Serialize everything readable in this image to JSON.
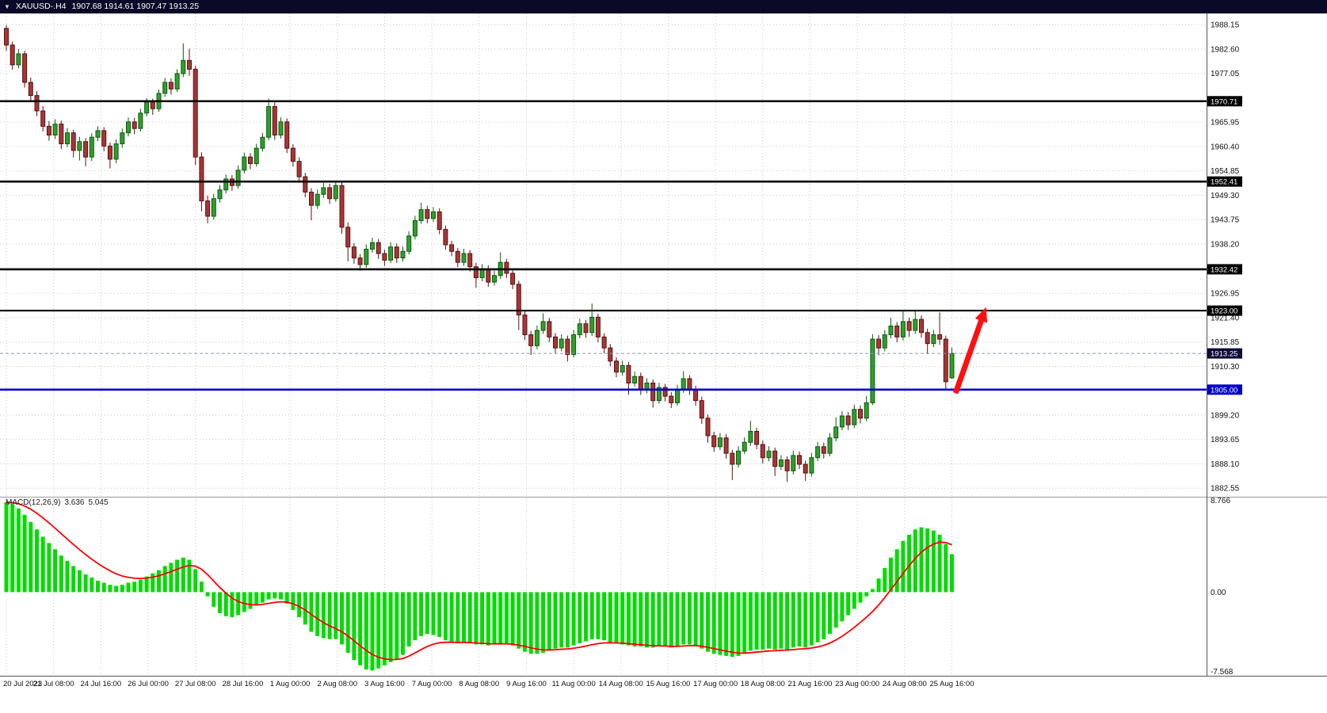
{
  "topbar": {
    "dropdown_icon": "▼",
    "symbol": "XAUUSD-.H4",
    "ohlc": "1907.68 1914.61 1907.47 1913.25"
  },
  "indicator": {
    "name": "MACD(12,26,9)",
    "value_main": "3.636",
    "value_signal": "5.045"
  },
  "colors": {
    "topbar_bg": "#0a0a28",
    "topbar_text": "#ffffff",
    "background": "#ffffff",
    "grid": "#c9c9c9"
  },
  "chart_data": [
    {
      "type": "candlestick",
      "symbol": "XAUUSD-",
      "timeframe": "H4",
      "bull_color": "#2f9e2f",
      "bull_border": "#0c5c0c",
      "bear_color": "#a83636",
      "bear_border": "#571111",
      "ylim": [
        1880.6,
        1990.7
      ],
      "y_ticks": [
        "1988.15",
        "1982.60",
        "1977.05",
        "1965.95",
        "1960.40",
        "1954.85",
        "1949.30",
        "1943.75",
        "1938.20",
        "1926.95",
        "1921.40",
        "1915.85",
        "1910.30",
        "1899.20",
        "1893.65",
        "1888.10",
        "1882.55"
      ],
      "boxed_labels": [
        {
          "value": "1970.71",
          "bg": "#000000"
        },
        {
          "value": "1952.41",
          "bg": "#000000"
        },
        {
          "value": "1932.42",
          "bg": "#000000"
        },
        {
          "value": "1923.00",
          "bg": "#000000"
        },
        {
          "value": "1913.25",
          "bg": "#0b0b38"
        },
        {
          "value": "1905.00",
          "bg": "#0000c8"
        }
      ],
      "price_lines": [
        {
          "value": 1970.71,
          "color": "#000000",
          "width": 2.6,
          "style": "solid"
        },
        {
          "value": 1952.41,
          "color": "#000000",
          "width": 2.6,
          "style": "solid"
        },
        {
          "value": 1932.42,
          "color": "#000000",
          "width": 2.6,
          "style": "solid"
        },
        {
          "value": 1923.0,
          "color": "#000000",
          "width": 2.2,
          "style": "solid"
        },
        {
          "value": 1913.25,
          "color": "#8b9ab5",
          "width": 1,
          "style": "dash"
        },
        {
          "value": 1905.0,
          "color": "#0000c8",
          "width": 2.6,
          "style": "solid"
        }
      ],
      "x_labels": [
        "20 Jul 2023",
        "21 Jul 08:00",
        "24 Jul 16:00",
        "26 Jul 00:00",
        "27 Jul 08:00",
        "28 Jul 16:00",
        "1 Aug 00:00",
        "2 Aug 08:00",
        "3 Aug 16:00",
        "7 Aug 00:00",
        "8 Aug 08:00",
        "9 Aug 16:00",
        "11 Aug 00:00",
        "14 Aug 08:00",
        "15 Aug 16:00",
        "17 Aug 00:00",
        "18 Aug 08:00",
        "21 Aug 16:00",
        "23 Aug 00:00",
        "24 Aug 08:00",
        "25 Aug 16:00"
      ],
      "annotation_arrow": {
        "from_bar": 155.6,
        "from_price": 1904.2,
        "to_bar": 160.6,
        "to_price": 1923.8,
        "color": "#ff0f0f"
      },
      "ohlc": [
        [
          1987.3,
          1988.1,
          1982.2,
          1983.5
        ],
        [
          1983.5,
          1984.3,
          1977.9,
          1979.0
        ],
        [
          1979.0,
          1982.6,
          1978.2,
          1981.5
        ],
        [
          1981.5,
          1982.2,
          1973.8,
          1975.0
        ],
        [
          1975.0,
          1976.1,
          1970.9,
          1972.0
        ],
        [
          1972.0,
          1973.0,
          1967.3,
          1968.5
        ],
        [
          1968.5,
          1969.6,
          1963.8,
          1965.0
        ],
        [
          1965.0,
          1966.2,
          1961.7,
          1963.0
        ],
        [
          1963.0,
          1966.6,
          1962.1,
          1965.5
        ],
        [
          1965.5,
          1966.3,
          1959.8,
          1961.0
        ],
        [
          1961.0,
          1964.6,
          1960.2,
          1963.5
        ],
        [
          1963.5,
          1964.2,
          1957.9,
          1959.5
        ],
        [
          1959.5,
          1962.6,
          1957.2,
          1961.5
        ],
        [
          1961.5,
          1962.3,
          1955.9,
          1958.0
        ],
        [
          1958.0,
          1963.4,
          1957.1,
          1962.5
        ],
        [
          1962.5,
          1965.0,
          1961.6,
          1964.0
        ],
        [
          1964.0,
          1964.8,
          1959.3,
          1960.5
        ],
        [
          1960.5,
          1961.3,
          1955.4,
          1957.5
        ],
        [
          1957.5,
          1962.0,
          1956.6,
          1961.0
        ],
        [
          1961.0,
          1964.5,
          1960.1,
          1963.5
        ],
        [
          1963.5,
          1967.0,
          1962.7,
          1966.0
        ],
        [
          1966.0,
          1966.9,
          1963.2,
          1964.5
        ],
        [
          1964.5,
          1969.0,
          1963.8,
          1968.0
        ],
        [
          1968.0,
          1971.4,
          1967.2,
          1970.5
        ],
        [
          1970.5,
          1971.3,
          1967.6,
          1969.0
        ],
        [
          1969.0,
          1973.4,
          1968.3,
          1972.5
        ],
        [
          1972.5,
          1976.0,
          1971.7,
          1975.0
        ],
        [
          1975.0,
          1975.9,
          1972.2,
          1973.5
        ],
        [
          1973.5,
          1978.0,
          1972.8,
          1977.0
        ],
        [
          1977.0,
          1983.9,
          1976.2,
          1980.0
        ],
        [
          1980.0,
          1982.7,
          1976.5,
          1978.0
        ],
        [
          1978.0,
          1978.8,
          1956.2,
          1958.0
        ],
        [
          1958.0,
          1959.1,
          1945.6,
          1948.0
        ],
        [
          1948.0,
          1949.2,
          1942.9,
          1944.5
        ],
        [
          1944.5,
          1949.6,
          1943.7,
          1948.5
        ],
        [
          1948.5,
          1951.6,
          1947.6,
          1950.5
        ],
        [
          1950.5,
          1954.0,
          1949.7,
          1953.0
        ],
        [
          1953.0,
          1953.9,
          1950.3,
          1951.5
        ],
        [
          1951.5,
          1956.1,
          1950.8,
          1955.0
        ],
        [
          1955.0,
          1959.0,
          1954.2,
          1958.0
        ],
        [
          1958.0,
          1958.9,
          1955.2,
          1956.5
        ],
        [
          1956.5,
          1961.0,
          1955.8,
          1960.0
        ],
        [
          1960.0,
          1963.5,
          1959.2,
          1962.5
        ],
        [
          1962.5,
          1971.3,
          1961.8,
          1969.5
        ],
        [
          1969.5,
          1970.6,
          1961.9,
          1963.0
        ],
        [
          1963.0,
          1967.0,
          1962.2,
          1966.0
        ],
        [
          1966.0,
          1966.8,
          1958.9,
          1960.0
        ],
        [
          1960.0,
          1960.9,
          1955.8,
          1957.0
        ],
        [
          1957.0,
          1957.9,
          1952.3,
          1953.5
        ],
        [
          1953.5,
          1954.4,
          1948.8,
          1950.0
        ],
        [
          1950.0,
          1950.9,
          1943.6,
          1947.0
        ],
        [
          1947.0,
          1950.6,
          1946.2,
          1949.5
        ],
        [
          1949.5,
          1952.1,
          1948.7,
          1951.0
        ],
        [
          1951.0,
          1951.9,
          1947.3,
          1948.5
        ],
        [
          1948.5,
          1952.6,
          1947.8,
          1951.5
        ],
        [
          1951.5,
          1952.3,
          1940.5,
          1942.0
        ],
        [
          1942.0,
          1943.1,
          1934.2,
          1937.5
        ],
        [
          1937.5,
          1938.4,
          1933.7,
          1935.0
        ],
        [
          1935.0,
          1935.9,
          1932.1,
          1933.5
        ],
        [
          1933.5,
          1938.1,
          1932.8,
          1937.0
        ],
        [
          1937.0,
          1939.6,
          1936.2,
          1938.5
        ],
        [
          1938.5,
          1939.3,
          1934.8,
          1936.0
        ],
        [
          1936.0,
          1936.9,
          1933.2,
          1934.5
        ],
        [
          1934.5,
          1938.6,
          1933.8,
          1937.5
        ],
        [
          1937.5,
          1938.3,
          1933.9,
          1935.0
        ],
        [
          1935.0,
          1937.6,
          1934.2,
          1936.5
        ],
        [
          1936.5,
          1941.1,
          1935.8,
          1940.0
        ],
        [
          1940.0,
          1944.6,
          1939.2,
          1943.5
        ],
        [
          1943.5,
          1947.6,
          1942.8,
          1946.0
        ],
        [
          1946.0,
          1946.9,
          1942.9,
          1944.0
        ],
        [
          1944.0,
          1946.6,
          1943.2,
          1945.5
        ],
        [
          1945.5,
          1946.3,
          1940.4,
          1941.5
        ],
        [
          1941.5,
          1942.4,
          1936.9,
          1938.0
        ],
        [
          1938.0,
          1938.9,
          1935.4,
          1936.5
        ],
        [
          1936.5,
          1937.3,
          1932.9,
          1934.0
        ],
        [
          1934.0,
          1937.1,
          1933.2,
          1936.0
        ],
        [
          1936.0,
          1936.8,
          1931.9,
          1933.0
        ],
        [
          1933.0,
          1933.9,
          1928.2,
          1930.5
        ],
        [
          1930.5,
          1933.6,
          1929.7,
          1932.5
        ],
        [
          1932.5,
          1933.3,
          1928.4,
          1929.5
        ],
        [
          1929.5,
          1932.1,
          1928.7,
          1931.0
        ],
        [
          1931.0,
          1936.3,
          1930.2,
          1934.0
        ],
        [
          1934.0,
          1934.8,
          1930.4,
          1931.5
        ],
        [
          1931.5,
          1932.4,
          1927.9,
          1929.0
        ],
        [
          1929.0,
          1929.8,
          1918.6,
          1922.0
        ],
        [
          1922.0,
          1922.9,
          1916.3,
          1917.5
        ],
        [
          1917.5,
          1918.4,
          1912.9,
          1915.0
        ],
        [
          1915.0,
          1919.6,
          1914.2,
          1918.5
        ],
        [
          1918.5,
          1922.4,
          1917.7,
          1920.5
        ],
        [
          1920.5,
          1921.3,
          1915.8,
          1917.0
        ],
        [
          1917.0,
          1917.9,
          1913.3,
          1914.5
        ],
        [
          1914.5,
          1917.6,
          1913.7,
          1916.5
        ],
        [
          1916.5,
          1917.3,
          1911.4,
          1913.0
        ],
        [
          1913.0,
          1918.6,
          1912.3,
          1917.5
        ],
        [
          1917.5,
          1921.1,
          1916.7,
          1920.0
        ],
        [
          1920.0,
          1920.9,
          1916.8,
          1918.0
        ],
        [
          1918.0,
          1924.6,
          1917.2,
          1921.5
        ],
        [
          1921.5,
          1922.3,
          1915.8,
          1917.0
        ],
        [
          1917.0,
          1917.8,
          1913.3,
          1914.5
        ],
        [
          1914.5,
          1915.4,
          1910.3,
          1911.5
        ],
        [
          1911.5,
          1912.4,
          1907.8,
          1909.0
        ],
        [
          1909.0,
          1911.6,
          1908.2,
          1910.5
        ],
        [
          1910.5,
          1911.3,
          1903.8,
          1906.5
        ],
        [
          1906.5,
          1909.1,
          1905.7,
          1908.0
        ],
        [
          1908.0,
          1908.9,
          1903.8,
          1905.0
        ],
        [
          1905.0,
          1907.6,
          1904.2,
          1906.5
        ],
        [
          1906.5,
          1907.3,
          1900.9,
          1902.5
        ],
        [
          1902.5,
          1906.6,
          1901.8,
          1905.5
        ],
        [
          1905.5,
          1906.3,
          1902.3,
          1903.5
        ],
        [
          1903.5,
          1904.4,
          1900.8,
          1902.0
        ],
        [
          1902.0,
          1906.1,
          1901.3,
          1905.0
        ],
        [
          1905.0,
          1909.2,
          1904.3,
          1907.5
        ],
        [
          1907.5,
          1908.3,
          1903.8,
          1905.0
        ],
        [
          1905.0,
          1905.9,
          1901.3,
          1902.5
        ],
        [
          1902.5,
          1903.4,
          1897.2,
          1898.5
        ],
        [
          1898.5,
          1899.3,
          1892.9,
          1894.5
        ],
        [
          1894.5,
          1895.4,
          1890.8,
          1892.0
        ],
        [
          1892.0,
          1895.1,
          1891.2,
          1894.0
        ],
        [
          1894.0,
          1894.9,
          1889.3,
          1890.5
        ],
        [
          1890.5,
          1891.3,
          1884.4,
          1888.0
        ],
        [
          1888.0,
          1892.1,
          1887.2,
          1891.0
        ],
        [
          1891.0,
          1894.1,
          1890.3,
          1893.0
        ],
        [
          1893.0,
          1897.9,
          1892.2,
          1895.5
        ],
        [
          1895.5,
          1896.3,
          1891.4,
          1892.5
        ],
        [
          1892.5,
          1893.4,
          1888.2,
          1889.5
        ],
        [
          1889.5,
          1892.1,
          1888.7,
          1891.0
        ],
        [
          1891.0,
          1891.8,
          1885.3,
          1887.5
        ],
        [
          1887.5,
          1890.1,
          1886.7,
          1889.0
        ],
        [
          1889.0,
          1889.8,
          1884.0,
          1886.5
        ],
        [
          1886.5,
          1891.1,
          1885.7,
          1890.0
        ],
        [
          1890.0,
          1890.9,
          1886.9,
          1888.0
        ],
        [
          1888.0,
          1888.8,
          1884.2,
          1886.0
        ],
        [
          1886.0,
          1890.6,
          1885.2,
          1889.5
        ],
        [
          1889.5,
          1893.1,
          1888.7,
          1892.0
        ],
        [
          1892.0,
          1892.9,
          1889.3,
          1890.5
        ],
        [
          1890.5,
          1895.1,
          1889.8,
          1894.0
        ],
        [
          1894.0,
          1898.7,
          1893.2,
          1896.5
        ],
        [
          1896.5,
          1900.1,
          1895.7,
          1899.0
        ],
        [
          1899.0,
          1899.9,
          1895.8,
          1897.0
        ],
        [
          1897.0,
          1901.6,
          1896.2,
          1900.5
        ],
        [
          1900.5,
          1901.4,
          1897.3,
          1898.5
        ],
        [
          1898.5,
          1903.6,
          1897.8,
          1902.0
        ],
        [
          1902.0,
          1917.6,
          1901.5,
          1916.5
        ],
        [
          1916.5,
          1917.4,
          1912.8,
          1914.5
        ],
        [
          1914.5,
          1918.6,
          1913.7,
          1917.5
        ],
        [
          1917.5,
          1921.4,
          1916.7,
          1919.5
        ],
        [
          1919.5,
          1920.4,
          1915.8,
          1917.0
        ],
        [
          1917.0,
          1922.8,
          1916.2,
          1920.5
        ],
        [
          1920.5,
          1921.4,
          1917.0,
          1918.5
        ],
        [
          1918.5,
          1923.0,
          1917.7,
          1921.0
        ],
        [
          1921.0,
          1921.9,
          1916.8,
          1918.0
        ],
        [
          1918.0,
          1918.9,
          1913.1,
          1915.5
        ],
        [
          1915.5,
          1918.6,
          1914.7,
          1917.5
        ],
        [
          1917.5,
          1922.6,
          1915.2,
          1916.5
        ],
        [
          1916.5,
          1917.3,
          1905.2,
          1906.8
        ],
        [
          1907.68,
          1914.61,
          1907.47,
          1913.25
        ]
      ]
    },
    {
      "type": "bar",
      "name": "MACD",
      "params": "12,26,9",
      "signal_period": 9,
      "bar_color": "#00dc00",
      "signal_color": "#ff0000",
      "ylim": [
        -8.0,
        9.05
      ],
      "y_ticks": [
        "8.766",
        "0.00",
        "-7.568"
      ],
      "current_macd": 3.636,
      "current_signal": 5.045,
      "values": [
        8.6,
        8.4,
        8.0,
        7.4,
        6.7,
        6.0,
        5.3,
        4.7,
        4.1,
        3.5,
        3.0,
        2.5,
        2.1,
        1.7,
        1.4,
        1.1,
        0.9,
        0.7,
        0.6,
        0.7,
        0.9,
        1.0,
        1.2,
        1.5,
        1.8,
        2.1,
        2.5,
        2.8,
        3.1,
        3.3,
        3.1,
        2.2,
        1.0,
        -0.4,
        -1.4,
        -2.0,
        -2.3,
        -2.4,
        -2.2,
        -1.9,
        -1.6,
        -1.3,
        -1.0,
        -0.7,
        -0.6,
        -0.7,
        -1.1,
        -1.7,
        -2.4,
        -3.1,
        -3.8,
        -4.2,
        -4.4,
        -4.5,
        -4.5,
        -5.0,
        -5.8,
        -6.5,
        -7.0,
        -7.4,
        -7.5,
        -7.3,
        -7.0,
        -6.7,
        -6.4,
        -6.0,
        -5.2,
        -4.6,
        -4.2,
        -4.0,
        -4.1,
        -4.3,
        -4.6,
        -4.8,
        -4.9,
        -4.8,
        -4.9,
        -5.0,
        -5.0,
        -5.1,
        -5.0,
        -4.9,
        -5.0,
        -5.1,
        -5.4,
        -5.7,
        -5.9,
        -5.9,
        -5.8,
        -5.6,
        -5.4,
        -5.3,
        -5.3,
        -5.1,
        -4.9,
        -4.7,
        -4.5,
        -4.5,
        -4.6,
        -4.8,
        -4.9,
        -5.0,
        -5.1,
        -5.2,
        -5.2,
        -5.3,
        -5.3,
        -5.2,
        -5.2,
        -5.3,
        -5.2,
        -5.0,
        -5.0,
        -5.1,
        -5.4,
        -5.7,
        -5.9,
        -6.0,
        -6.1,
        -6.2,
        -6.1,
        -5.9,
        -5.6,
        -5.5,
        -5.5,
        -5.4,
        -5.5,
        -5.4,
        -5.5,
        -5.3,
        -5.2,
        -5.3,
        -5.1,
        -4.8,
        -4.5,
        -4.0,
        -3.4,
        -2.8,
        -2.2,
        -1.6,
        -1.0,
        -0.4,
        0.3,
        1.3,
        2.3,
        3.3,
        4.1,
        4.9,
        5.5,
        6.0,
        6.2,
        6.1,
        5.9,
        5.5,
        4.6,
        3.636
      ]
    }
  ]
}
